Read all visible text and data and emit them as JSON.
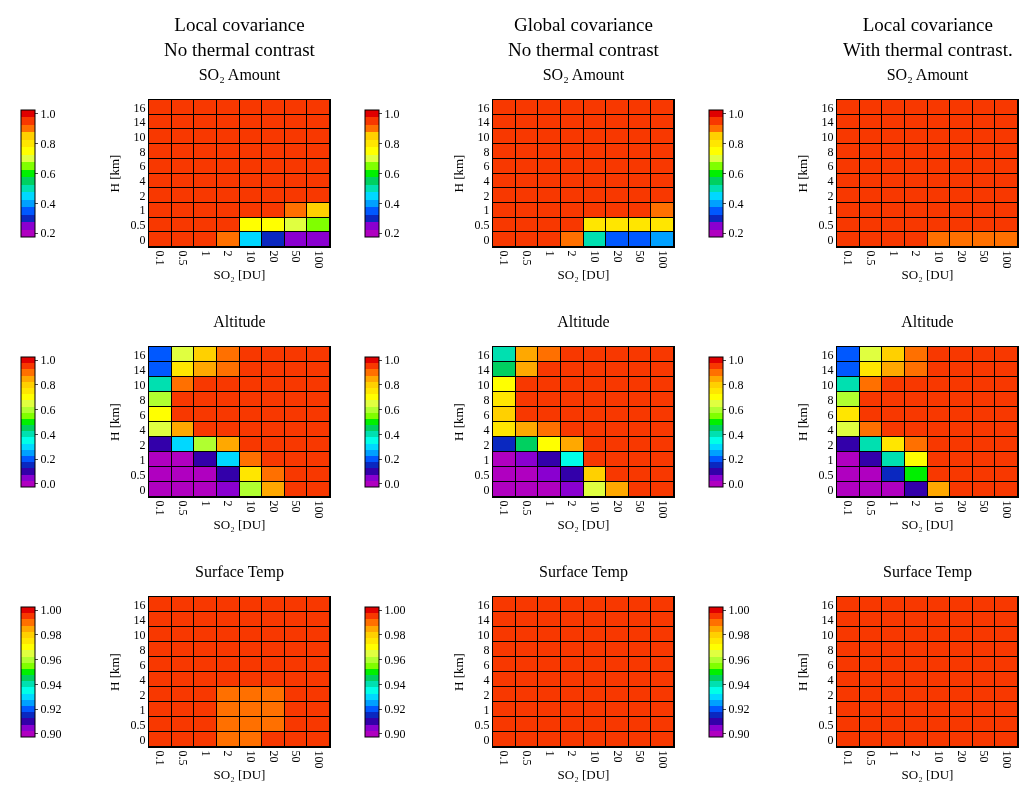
{
  "chart_data": [
    {
      "type": "heatmap",
      "annotations": [
        "Local covariance\nNo thermal contrast"
      ],
      "title": "SO₂ Amount",
      "xlabel": "SO₂ [DU]",
      "ylabel": "H [km]",
      "categories": [
        "0.1",
        "0.5",
        "1",
        "2",
        "10",
        "20",
        "50",
        "100"
      ],
      "y_categories": [
        "16",
        "14",
        "10",
        "8",
        "6",
        "4",
        "2",
        "1",
        "0.5",
        "0"
      ],
      "clim": [
        0.175,
        1.025
      ],
      "cticks": [
        {
          "value": 0.2,
          "label": "0.2"
        },
        {
          "value": 0.4,
          "label": "0.4"
        },
        {
          "value": 0.6,
          "label": "0.6"
        },
        {
          "value": 0.8,
          "label": "0.8"
        },
        {
          "value": 1,
          "label": "1.0"
        }
      ],
      "cells": [
        [
          0.95,
          0.95,
          0.95,
          0.95,
          0.95,
          0.95,
          0.95,
          0.95
        ],
        [
          0.95,
          0.95,
          0.95,
          0.95,
          0.95,
          0.95,
          0.95,
          0.95
        ],
        [
          0.95,
          0.95,
          0.95,
          0.95,
          0.95,
          0.95,
          0.95,
          0.95
        ],
        [
          0.95,
          0.95,
          0.95,
          0.95,
          0.95,
          0.95,
          0.95,
          0.95
        ],
        [
          0.95,
          0.95,
          0.95,
          0.95,
          0.95,
          0.95,
          0.95,
          0.95
        ],
        [
          0.95,
          0.95,
          0.95,
          0.95,
          0.95,
          0.95,
          0.95,
          0.95
        ],
        [
          0.95,
          0.95,
          0.95,
          0.95,
          0.95,
          0.95,
          0.95,
          0.95
        ],
        [
          0.95,
          0.95,
          0.95,
          0.95,
          0.95,
          0.95,
          0.9,
          0.85
        ],
        [
          0.95,
          0.95,
          0.95,
          0.95,
          0.75,
          0.75,
          0.7,
          0.65
        ],
        [
          0.95,
          0.95,
          0.95,
          0.9,
          0.45,
          0.3,
          0.25,
          0.25
        ]
      ]
    },
    {
      "type": "heatmap",
      "annotations": [
        "Global covariance\nNo thermal contrast"
      ],
      "title": "SO₂ Amount",
      "xlabel": "SO₂ [DU]",
      "ylabel": "H [km]",
      "categories": [
        "0.1",
        "0.5",
        "1",
        "2",
        "10",
        "20",
        "50",
        "100"
      ],
      "y_categories": [
        "16",
        "14",
        "10",
        "8",
        "6",
        "4",
        "2",
        "1",
        "0.5",
        "0"
      ],
      "clim": [
        0.175,
        1.025
      ],
      "cticks": [
        {
          "value": 0.2,
          "label": "0.2"
        },
        {
          "value": 0.4,
          "label": "0.4"
        },
        {
          "value": 0.6,
          "label": "0.6"
        },
        {
          "value": 0.8,
          "label": "0.8"
        },
        {
          "value": 1,
          "label": "1.0"
        }
      ],
      "cells": [
        [
          0.95,
          0.95,
          0.95,
          0.95,
          0.95,
          0.95,
          0.95,
          0.95
        ],
        [
          0.95,
          0.95,
          0.95,
          0.95,
          0.95,
          0.95,
          0.95,
          0.95
        ],
        [
          0.95,
          0.95,
          0.95,
          0.95,
          0.95,
          0.95,
          0.95,
          0.95
        ],
        [
          0.95,
          0.95,
          0.95,
          0.95,
          0.95,
          0.95,
          0.95,
          0.95
        ],
        [
          0.95,
          0.95,
          0.95,
          0.95,
          0.95,
          0.95,
          0.95,
          0.95
        ],
        [
          0.95,
          0.95,
          0.95,
          0.95,
          0.95,
          0.95,
          0.95,
          0.95
        ],
        [
          0.95,
          0.95,
          0.95,
          0.95,
          0.95,
          0.95,
          0.95,
          0.95
        ],
        [
          0.95,
          0.95,
          0.95,
          0.95,
          0.95,
          0.95,
          0.95,
          0.9
        ],
        [
          0.95,
          0.95,
          0.95,
          0.95,
          0.8,
          0.8,
          0.8,
          0.8
        ],
        [
          0.95,
          0.95,
          0.95,
          0.9,
          0.5,
          0.35,
          0.35,
          0.4
        ]
      ]
    },
    {
      "type": "heatmap",
      "annotations": [
        "Local covariance\nWith thermal contrast."
      ],
      "title": "SO₂ Amount",
      "xlabel": "SO₂ [DU]",
      "ylabel": "H [km]",
      "categories": [
        "0.1",
        "0.5",
        "1",
        "2",
        "10",
        "20",
        "50",
        "100"
      ],
      "y_categories": [
        "16",
        "14",
        "10",
        "8",
        "6",
        "4",
        "2",
        "1",
        "0.5",
        "0"
      ],
      "clim": [
        0.175,
        1.025
      ],
      "cticks": [
        {
          "value": 0.2,
          "label": "0.2"
        },
        {
          "value": 0.4,
          "label": "0.4"
        },
        {
          "value": 0.6,
          "label": "0.6"
        },
        {
          "value": 0.8,
          "label": "0.8"
        },
        {
          "value": 1,
          "label": "1.0"
        }
      ],
      "cells": [
        [
          0.95,
          0.95,
          0.95,
          0.95,
          0.95,
          0.95,
          0.95,
          0.95
        ],
        [
          0.95,
          0.95,
          0.95,
          0.95,
          0.95,
          0.95,
          0.95,
          0.95
        ],
        [
          0.95,
          0.95,
          0.95,
          0.95,
          0.95,
          0.95,
          0.95,
          0.95
        ],
        [
          0.95,
          0.95,
          0.95,
          0.95,
          0.95,
          0.95,
          0.95,
          0.95
        ],
        [
          0.95,
          0.95,
          0.95,
          0.95,
          0.95,
          0.95,
          0.95,
          0.95
        ],
        [
          0.95,
          0.95,
          0.95,
          0.95,
          0.95,
          0.95,
          0.95,
          0.95
        ],
        [
          0.95,
          0.95,
          0.95,
          0.95,
          0.95,
          0.95,
          0.95,
          0.95
        ],
        [
          0.95,
          0.95,
          0.95,
          0.95,
          0.95,
          0.95,
          0.95,
          0.95
        ],
        [
          0.95,
          0.95,
          0.95,
          0.95,
          0.95,
          0.95,
          0.95,
          0.95
        ],
        [
          0.95,
          0.95,
          0.95,
          0.95,
          0.9,
          0.9,
          0.9,
          0.9
        ]
      ]
    },
    {
      "type": "heatmap",
      "title": "Altitude",
      "xlabel": "SO₂ [DU]",
      "ylabel": "H [km]",
      "categories": [
        "0.1",
        "0.5",
        "1",
        "2",
        "10",
        "20",
        "50",
        "100"
      ],
      "y_categories": [
        "16",
        "14",
        "10",
        "8",
        "6",
        "4",
        "2",
        "1",
        "0.5",
        "0"
      ],
      "clim": [
        -0.025,
        1.025
      ],
      "cticks": [
        {
          "value": 0,
          "label": "0.0"
        },
        {
          "value": 0.2,
          "label": "0.2"
        },
        {
          "value": 0.4,
          "label": "0.4"
        },
        {
          "value": 0.6,
          "label": "0.6"
        },
        {
          "value": 0.8,
          "label": "0.8"
        },
        {
          "value": 1,
          "label": "1.0"
        }
      ],
      "cells": [
        [
          0.2,
          0.65,
          0.8,
          0.9,
          0.95,
          0.95,
          0.95,
          0.95
        ],
        [
          0.2,
          0.75,
          0.85,
          0.9,
          0.95,
          0.95,
          0.95,
          0.95
        ],
        [
          0.4,
          0.9,
          0.95,
          0.95,
          0.95,
          0.95,
          0.95,
          0.95
        ],
        [
          0.6,
          0.95,
          0.95,
          0.95,
          0.95,
          0.95,
          0.95,
          0.95
        ],
        [
          0.7,
          0.95,
          0.95,
          0.95,
          0.95,
          0.95,
          0.95,
          0.95
        ],
        [
          0.65,
          0.85,
          0.95,
          0.95,
          0.95,
          0.95,
          0.95,
          0.95
        ],
        [
          0.1,
          0.3,
          0.6,
          0.85,
          0.95,
          0.95,
          0.95,
          0.95
        ],
        [
          0,
          0,
          0.1,
          0.3,
          0.9,
          0.95,
          0.95,
          0.95
        ],
        [
          0,
          0,
          0,
          0.1,
          0.75,
          0.9,
          0.95,
          0.95
        ],
        [
          0,
          0,
          0,
          0.05,
          0.6,
          0.85,
          0.95,
          0.95
        ]
      ]
    },
    {
      "type": "heatmap",
      "title": "Altitude",
      "xlabel": "SO₂ [DU]",
      "ylabel": "H [km]",
      "categories": [
        "0.1",
        "0.5",
        "1",
        "2",
        "10",
        "20",
        "50",
        "100"
      ],
      "y_categories": [
        "16",
        "14",
        "10",
        "8",
        "6",
        "4",
        "2",
        "1",
        "0.5",
        "0"
      ],
      "clim": [
        -0.025,
        1.025
      ],
      "cticks": [
        {
          "value": 0,
          "label": "0.0"
        },
        {
          "value": 0.2,
          "label": "0.2"
        },
        {
          "value": 0.4,
          "label": "0.4"
        },
        {
          "value": 0.6,
          "label": "0.6"
        },
        {
          "value": 0.8,
          "label": "0.8"
        },
        {
          "value": 1,
          "label": "1.0"
        }
      ],
      "cells": [
        [
          0.4,
          0.85,
          0.9,
          0.95,
          0.95,
          0.95,
          0.95,
          0.95
        ],
        [
          0.45,
          0.85,
          0.95,
          0.95,
          0.95,
          0.95,
          0.95,
          0.95
        ],
        [
          0.7,
          0.95,
          0.95,
          0.95,
          0.95,
          0.95,
          0.95,
          0.95
        ],
        [
          0.75,
          0.95,
          0.95,
          0.95,
          0.95,
          0.95,
          0.95,
          0.95
        ],
        [
          0.8,
          0.95,
          0.95,
          0.95,
          0.95,
          0.95,
          0.95,
          0.95
        ],
        [
          0.75,
          0.85,
          0.9,
          0.95,
          0.95,
          0.95,
          0.95,
          0.95
        ],
        [
          0.15,
          0.45,
          0.7,
          0.85,
          0.95,
          0.95,
          0.95,
          0.95
        ],
        [
          0,
          0.05,
          0.1,
          0.35,
          0.95,
          0.95,
          0.95,
          0.95
        ],
        [
          0,
          0,
          0.05,
          0.1,
          0.8,
          0.95,
          0.95,
          0.95
        ],
        [
          0,
          0,
          0,
          0.05,
          0.65,
          0.85,
          0.95,
          0.95
        ]
      ]
    },
    {
      "type": "heatmap",
      "title": "Altitude",
      "xlabel": "SO₂ [DU]",
      "ylabel": "H [km]",
      "categories": [
        "0.1",
        "0.5",
        "1",
        "2",
        "10",
        "20",
        "50",
        "100"
      ],
      "y_categories": [
        "16",
        "14",
        "10",
        "8",
        "6",
        "4",
        "2",
        "1",
        "0.5",
        "0"
      ],
      "clim": [
        -0.025,
        1.025
      ],
      "cticks": [
        {
          "value": 0,
          "label": "0.0"
        },
        {
          "value": 0.2,
          "label": "0.2"
        },
        {
          "value": 0.4,
          "label": "0.4"
        },
        {
          "value": 0.6,
          "label": "0.6"
        },
        {
          "value": 0.8,
          "label": "0.8"
        },
        {
          "value": 1,
          "label": "1.0"
        }
      ],
      "cells": [
        [
          0.2,
          0.65,
          0.8,
          0.9,
          0.95,
          0.95,
          0.95,
          0.95
        ],
        [
          0.2,
          0.75,
          0.85,
          0.9,
          0.95,
          0.95,
          0.95,
          0.95
        ],
        [
          0.4,
          0.9,
          0.95,
          0.95,
          0.95,
          0.95,
          0.95,
          0.95
        ],
        [
          0.6,
          0.95,
          0.95,
          0.95,
          0.95,
          0.95,
          0.95,
          0.95
        ],
        [
          0.75,
          0.95,
          0.95,
          0.95,
          0.95,
          0.95,
          0.95,
          0.95
        ],
        [
          0.65,
          0.9,
          0.95,
          0.95,
          0.95,
          0.95,
          0.95,
          0.95
        ],
        [
          0.1,
          0.4,
          0.75,
          0.9,
          0.95,
          0.95,
          0.95,
          0.95
        ],
        [
          0,
          0.1,
          0.4,
          0.7,
          0.95,
          0.95,
          0.95,
          0.95
        ],
        [
          0,
          0,
          0.15,
          0.5,
          0.95,
          0.95,
          0.95,
          0.95
        ],
        [
          0,
          0,
          0,
          0.1,
          0.85,
          0.95,
          0.95,
          0.95
        ]
      ]
    },
    {
      "type": "heatmap",
      "title": "Surface Temp",
      "xlabel": "SO₂ [DU]",
      "ylabel": "H [km]",
      "categories": [
        "0.1",
        "0.5",
        "1",
        "2",
        "10",
        "20",
        "50",
        "100"
      ],
      "y_categories": [
        "16",
        "14",
        "10",
        "8",
        "6",
        "4",
        "2",
        "1",
        "0.5",
        "0"
      ],
      "clim": [
        0.8975,
        1.0025
      ],
      "cticks": [
        {
          "value": 0.9,
          "label": "0.90"
        },
        {
          "value": 0.92,
          "label": "0.92"
        },
        {
          "value": 0.94,
          "label": "0.94"
        },
        {
          "value": 0.96,
          "label": "0.96"
        },
        {
          "value": 0.98,
          "label": "0.98"
        },
        {
          "value": 1,
          "label": "1.00"
        }
      ],
      "cells": [
        [
          0.995,
          0.995,
          0.995,
          0.995,
          0.995,
          0.995,
          0.995,
          0.995
        ],
        [
          0.995,
          0.995,
          0.995,
          0.995,
          0.995,
          0.995,
          0.995,
          0.995
        ],
        [
          0.995,
          0.995,
          0.995,
          0.995,
          0.995,
          0.995,
          0.995,
          0.995
        ],
        [
          0.995,
          0.995,
          0.995,
          0.995,
          0.995,
          0.995,
          0.995,
          0.995
        ],
        [
          0.995,
          0.995,
          0.995,
          0.995,
          0.995,
          0.995,
          0.995,
          0.995
        ],
        [
          0.995,
          0.995,
          0.995,
          0.995,
          0.995,
          0.995,
          0.995,
          0.995
        ],
        [
          0.995,
          0.995,
          0.995,
          0.99,
          0.99,
          0.99,
          0.995,
          0.995
        ],
        [
          0.995,
          0.995,
          0.995,
          0.99,
          0.99,
          0.99,
          0.995,
          0.995
        ],
        [
          0.995,
          0.995,
          0.995,
          0.99,
          0.99,
          0.99,
          0.995,
          0.995
        ],
        [
          0.995,
          0.995,
          0.995,
          0.99,
          0.99,
          0.995,
          0.995,
          0.995
        ]
      ]
    },
    {
      "type": "heatmap",
      "title": "Surface Temp",
      "xlabel": "SO₂ [DU]",
      "ylabel": "H [km]",
      "categories": [
        "0.1",
        "0.5",
        "1",
        "2",
        "10",
        "20",
        "50",
        "100"
      ],
      "y_categories": [
        "16",
        "14",
        "10",
        "8",
        "6",
        "4",
        "2",
        "1",
        "0.5",
        "0"
      ],
      "clim": [
        0.8975,
        1.0025
      ],
      "cticks": [
        {
          "value": 0.9,
          "label": "0.90"
        },
        {
          "value": 0.92,
          "label": "0.92"
        },
        {
          "value": 0.94,
          "label": "0.94"
        },
        {
          "value": 0.96,
          "label": "0.96"
        },
        {
          "value": 0.98,
          "label": "0.98"
        },
        {
          "value": 1,
          "label": "1.00"
        }
      ],
      "cells": [
        [
          0.995,
          0.995,
          0.995,
          0.995,
          0.995,
          0.995,
          0.995,
          0.995
        ],
        [
          0.995,
          0.995,
          0.995,
          0.995,
          0.995,
          0.995,
          0.995,
          0.995
        ],
        [
          0.995,
          0.995,
          0.995,
          0.995,
          0.995,
          0.995,
          0.995,
          0.995
        ],
        [
          0.995,
          0.995,
          0.995,
          0.995,
          0.995,
          0.995,
          0.995,
          0.995
        ],
        [
          0.995,
          0.995,
          0.995,
          0.995,
          0.995,
          0.995,
          0.995,
          0.995
        ],
        [
          0.995,
          0.995,
          0.995,
          0.995,
          0.995,
          0.995,
          0.995,
          0.995
        ],
        [
          0.995,
          0.995,
          0.995,
          0.995,
          0.995,
          0.995,
          0.995,
          0.995
        ],
        [
          0.995,
          0.995,
          0.995,
          0.995,
          0.995,
          0.995,
          0.995,
          0.995
        ],
        [
          0.995,
          0.995,
          0.995,
          0.995,
          0.995,
          0.995,
          0.995,
          0.995
        ],
        [
          0.995,
          0.995,
          0.995,
          0.995,
          0.995,
          0.995,
          0.995,
          0.995
        ]
      ]
    },
    {
      "type": "heatmap",
      "title": "Surface Temp",
      "xlabel": "SO₂ [DU]",
      "ylabel": "H [km]",
      "categories": [
        "0.1",
        "0.5",
        "1",
        "2",
        "10",
        "20",
        "50",
        "100"
      ],
      "y_categories": [
        "16",
        "14",
        "10",
        "8",
        "6",
        "4",
        "2",
        "1",
        "0.5",
        "0"
      ],
      "clim": [
        0.8975,
        1.0025
      ],
      "cticks": [
        {
          "value": 0.9,
          "label": "0.90"
        },
        {
          "value": 0.92,
          "label": "0.92"
        },
        {
          "value": 0.94,
          "label": "0.94"
        },
        {
          "value": 0.96,
          "label": "0.96"
        },
        {
          "value": 0.98,
          "label": "0.98"
        },
        {
          "value": 1,
          "label": "1.00"
        }
      ],
      "cells": [
        [
          0.995,
          0.995,
          0.995,
          0.995,
          0.995,
          0.995,
          0.995,
          0.995
        ],
        [
          0.995,
          0.995,
          0.995,
          0.995,
          0.995,
          0.995,
          0.995,
          0.995
        ],
        [
          0.995,
          0.995,
          0.995,
          0.995,
          0.995,
          0.995,
          0.995,
          0.995
        ],
        [
          0.995,
          0.995,
          0.995,
          0.995,
          0.995,
          0.995,
          0.995,
          0.995
        ],
        [
          0.995,
          0.995,
          0.995,
          0.995,
          0.995,
          0.995,
          0.995,
          0.995
        ],
        [
          0.995,
          0.995,
          0.995,
          0.995,
          0.995,
          0.995,
          0.995,
          0.995
        ],
        [
          0.995,
          0.995,
          0.995,
          0.995,
          0.995,
          0.995,
          0.995,
          0.995
        ],
        [
          0.995,
          0.995,
          0.995,
          0.995,
          0.995,
          0.995,
          0.995,
          0.995
        ],
        [
          0.995,
          0.995,
          0.995,
          0.995,
          0.995,
          0.995,
          0.995,
          0.995
        ],
        [
          0.995,
          0.995,
          0.995,
          0.995,
          0.995,
          0.995,
          0.995,
          0.995
        ]
      ]
    }
  ]
}
